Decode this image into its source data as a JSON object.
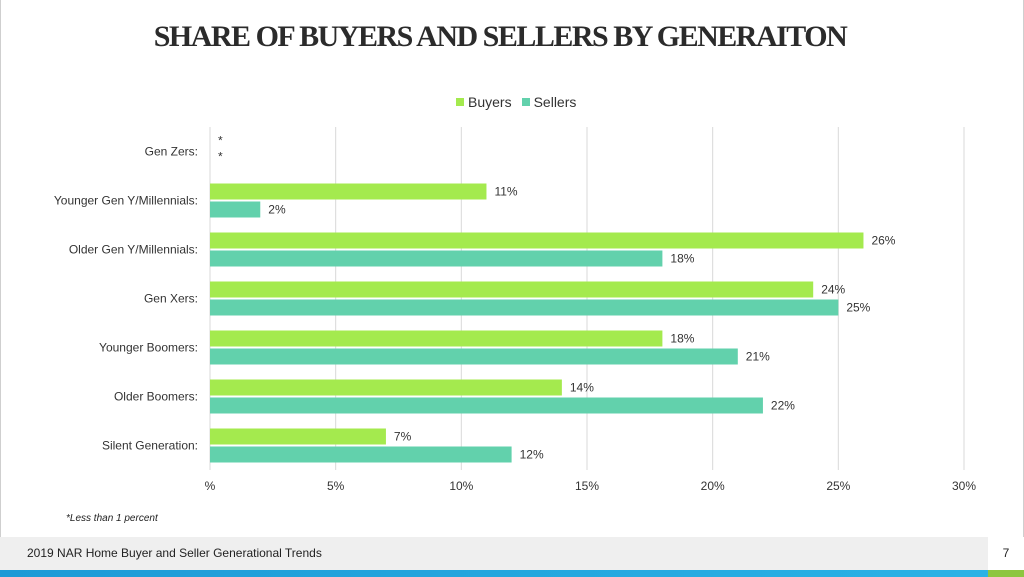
{
  "title": "SHARE OF BUYERS AND SELLERS BY GENERAITON",
  "colors": {
    "buyers": "#a4ea4e",
    "sellers": "#62d1ac",
    "grid": "#d9d9d9"
  },
  "footnote": "*Less than 1 percent",
  "footer": {
    "text": "2019 NAR Home Buyer and Seller Generational Trends",
    "page": "7"
  },
  "chart_data": {
    "type": "bar",
    "orientation": "horizontal",
    "categories": [
      "Gen Zers:",
      "Younger Gen Y/Millennials:",
      "Older Gen Y/Millennials:",
      "Gen Xers:",
      "Younger Boomers:",
      "Older Boomers:",
      "Silent Generation:"
    ],
    "series": [
      {
        "name": "Buyers",
        "values": [
          0,
          11,
          26,
          24,
          18,
          14,
          7
        ],
        "labels": [
          "*",
          "11%",
          "26%",
          "24%",
          "18%",
          "14%",
          "7%"
        ]
      },
      {
        "name": "Sellers",
        "values": [
          0,
          2,
          18,
          25,
          21,
          22,
          12
        ],
        "labels": [
          "*",
          "2%",
          "18%",
          "25%",
          "21%",
          "22%",
          "12%"
        ]
      }
    ],
    "xlim": [
      0,
      30
    ],
    "xticks": [
      "%",
      "5%",
      "10%",
      "15%",
      "20%",
      "25%",
      "30%"
    ],
    "grid": true,
    "legend": "top-center"
  }
}
